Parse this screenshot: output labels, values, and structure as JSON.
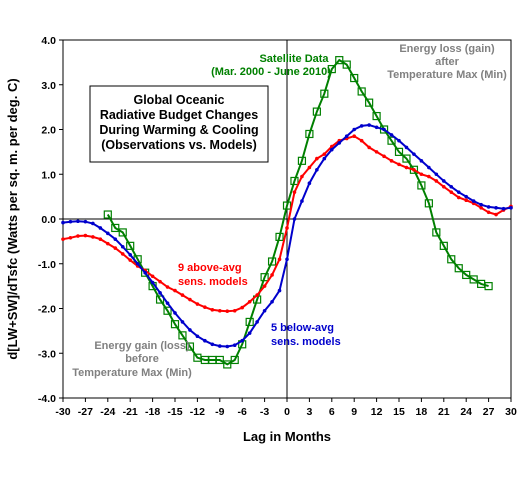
{
  "chart_data": {
    "type": "line",
    "xlabel": "Lag in Months",
    "ylabel": "d[LW+SW]/dTsfc (Watts per sq. m. per deg. C)",
    "xlim": [
      -30,
      30
    ],
    "ylim": [
      -4.0,
      4.0
    ],
    "x_ticks": [
      -30,
      -27,
      -24,
      -21,
      -18,
      -15,
      -12,
      -9,
      -6,
      -3,
      0,
      3,
      6,
      9,
      12,
      15,
      18,
      21,
      24,
      27,
      30
    ],
    "x_tick_labels": [
      "-30",
      "-27",
      "-24",
      "-21",
      "-18",
      "-15",
      "-12",
      "-9",
      "-6",
      "-3",
      "0",
      "3",
      "6",
      "9",
      "12",
      "15",
      "18",
      "21",
      "24",
      "27",
      "30"
    ],
    "y_ticks": [
      -4.0,
      -3.0,
      -2.0,
      -1.0,
      0.0,
      1.0,
      2.0,
      3.0,
      4.0
    ],
    "y_tick_labels": [
      "-4.0",
      "-3.0",
      "-2.0",
      "-1.0",
      "0.0",
      "1.0",
      "2.0",
      "3.0",
      "4.0"
    ],
    "grid": false,
    "zero_line": true,
    "title_box": [
      "Global Oceanic",
      "Radiative Budget Changes",
      "During Warming & Cooling",
      "(Observations vs. Models)"
    ],
    "annotations": {
      "satellite": [
        "Satellite Data",
        "(Mar. 2000 - June 2010)"
      ],
      "above_avg": [
        "9 above-avg",
        "sens. models"
      ],
      "below_avg": [
        "5 below-avg",
        "sens. models"
      ],
      "energy_loss": [
        "Energy loss (gain)",
        "after",
        "Temperature Max (Min)"
      ],
      "energy_gain": [
        "Energy gain (loss)",
        "before",
        "Temperature Max (Min)"
      ]
    },
    "colors": {
      "satellite": "#008000",
      "above_avg": "#ff0000",
      "below_avg": "#0000cc",
      "grey_text": "#808080"
    },
    "series": [
      {
        "key": "satellite",
        "marker": "open-square",
        "x": [
          -24,
          -23,
          -22,
          -21,
          -20,
          -19,
          -18,
          -17,
          -16,
          -15,
          -14,
          -13,
          -12,
          -11,
          -10,
          -9,
          -8,
          -7,
          -6,
          -5,
          -4,
          -3,
          -2,
          -1,
          0,
          1,
          2,
          3,
          4,
          5,
          6,
          7,
          8,
          9,
          10,
          11,
          12,
          13,
          14,
          15,
          16,
          17,
          18,
          19,
          20,
          21,
          22,
          23,
          24,
          25,
          26,
          27
        ],
        "y": [
          0.1,
          -0.2,
          -0.3,
          -0.6,
          -0.9,
          -1.2,
          -1.5,
          -1.8,
          -2.05,
          -2.35,
          -2.6,
          -2.85,
          -3.1,
          -3.15,
          -3.15,
          -3.15,
          -3.25,
          -3.15,
          -2.8,
          -2.3,
          -1.8,
          -1.3,
          -0.95,
          -0.4,
          0.3,
          0.85,
          1.3,
          1.9,
          2.4,
          2.8,
          3.35,
          3.55,
          3.45,
          3.15,
          2.85,
          2.6,
          2.3,
          2.0,
          1.75,
          1.5,
          1.35,
          1.1,
          0.75,
          0.35,
          -0.3,
          -0.6,
          -0.9,
          -1.1,
          -1.25,
          -1.35,
          -1.45,
          -1.5
        ]
      },
      {
        "key": "above_avg",
        "marker": "small-dot",
        "x": [
          -30,
          -29,
          -28,
          -27,
          -26,
          -25,
          -24,
          -23,
          -22,
          -21,
          -20,
          -19,
          -18,
          -17,
          -16,
          -15,
          -14,
          -13,
          -12,
          -11,
          -10,
          -9,
          -8,
          -7,
          -6,
          -5,
          -4,
          -3,
          -2,
          -1,
          0,
          1,
          2,
          3,
          4,
          5,
          6,
          7,
          8,
          9,
          10,
          11,
          12,
          13,
          14,
          15,
          16,
          17,
          18,
          19,
          20,
          21,
          22,
          23,
          24,
          25,
          26,
          27,
          28,
          29,
          30
        ],
        "y": [
          -0.45,
          -0.42,
          -0.38,
          -0.37,
          -0.4,
          -0.45,
          -0.55,
          -0.65,
          -0.78,
          -0.92,
          -1.05,
          -1.15,
          -1.28,
          -1.4,
          -1.52,
          -1.6,
          -1.7,
          -1.8,
          -1.9,
          -1.97,
          -2.03,
          -2.05,
          -2.06,
          -2.05,
          -1.98,
          -1.85,
          -1.7,
          -1.5,
          -1.25,
          -0.9,
          -0.2,
          0.6,
          0.95,
          1.15,
          1.35,
          1.45,
          1.62,
          1.75,
          1.8,
          1.85,
          1.75,
          1.6,
          1.5,
          1.4,
          1.3,
          1.22,
          1.15,
          1.1,
          1.0,
          0.95,
          0.85,
          0.72,
          0.6,
          0.48,
          0.42,
          0.35,
          0.25,
          0.15,
          0.1,
          0.2,
          0.28
        ]
      },
      {
        "key": "below_avg",
        "marker": "small-dot",
        "x": [
          -30,
          -29,
          -28,
          -27,
          -26,
          -25,
          -24,
          -23,
          -22,
          -21,
          -20,
          -19,
          -18,
          -17,
          -16,
          -15,
          -14,
          -13,
          -12,
          -11,
          -10,
          -9,
          -8,
          -7,
          -6,
          -5,
          -4,
          -3,
          -2,
          -1,
          0,
          1,
          2,
          3,
          4,
          5,
          6,
          7,
          8,
          9,
          10,
          11,
          12,
          13,
          14,
          15,
          16,
          17,
          18,
          19,
          20,
          21,
          22,
          23,
          24,
          25,
          26,
          27,
          28,
          29,
          30
        ],
        "y": [
          -0.08,
          -0.06,
          -0.05,
          -0.06,
          -0.1,
          -0.2,
          -0.32,
          -0.45,
          -0.62,
          -0.8,
          -1.0,
          -1.2,
          -1.42,
          -1.65,
          -1.88,
          -2.1,
          -2.3,
          -2.48,
          -2.62,
          -2.72,
          -2.8,
          -2.84,
          -2.85,
          -2.82,
          -2.72,
          -2.55,
          -2.3,
          -2.05,
          -1.85,
          -1.6,
          -0.9,
          0.0,
          0.4,
          0.8,
          1.1,
          1.35,
          1.55,
          1.7,
          1.85,
          2.0,
          2.08,
          2.1,
          2.05,
          2.0,
          1.88,
          1.75,
          1.6,
          1.45,
          1.3,
          1.15,
          1.0,
          0.85,
          0.72,
          0.6,
          0.5,
          0.4,
          0.32,
          0.27,
          0.25,
          0.23,
          0.25
        ]
      }
    ]
  }
}
